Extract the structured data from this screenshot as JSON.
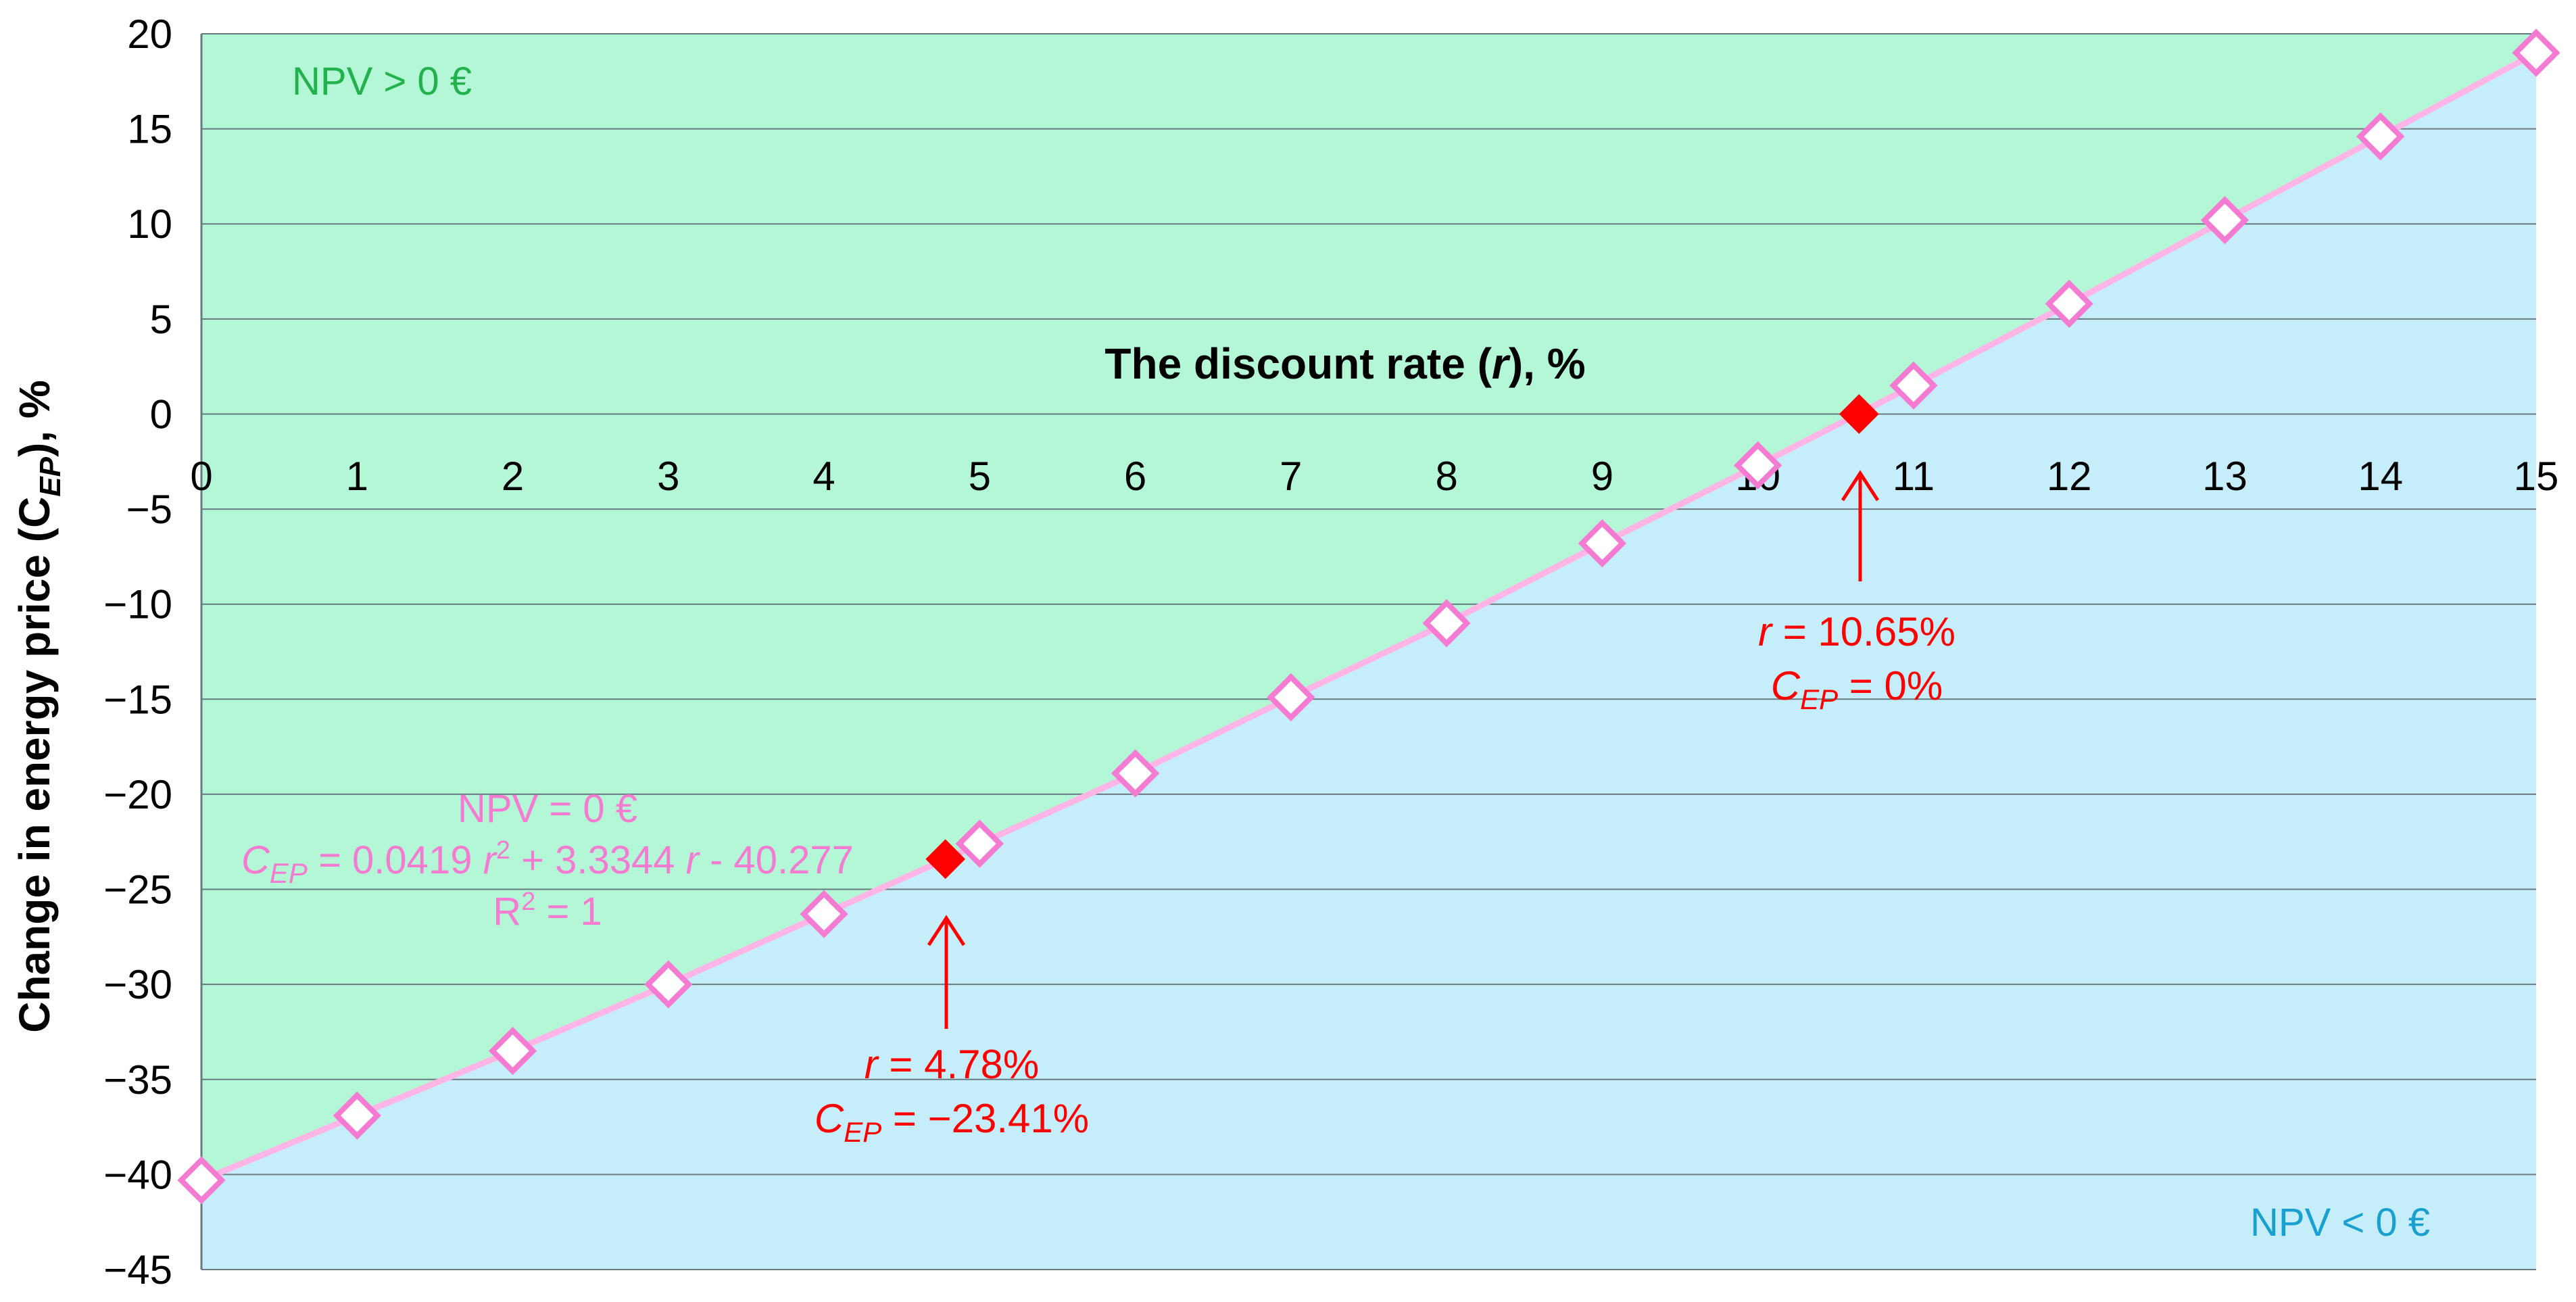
{
  "chart_data": {
    "type": "line",
    "xlabel": "The discount rate (r), %",
    "ylabel": "Change in energy price (CEP), %",
    "xlim": [
      0,
      15
    ],
    "ylim": [
      -45,
      20
    ],
    "x_ticks": [
      "0",
      "1",
      "2",
      "3",
      "4",
      "5",
      "6",
      "7",
      "8",
      "9",
      "10",
      "11",
      "12",
      "13",
      "14",
      "15"
    ],
    "y_ticks": [
      "20",
      "15",
      "10",
      "5",
      "0",
      "−5",
      "−10",
      "−15",
      "−20",
      "−25",
      "−30",
      "−35",
      "−40",
      "−45"
    ],
    "grid": "horizontal",
    "series": [
      {
        "marker": "diamond-open",
        "color": "#f47ad2",
        "line_color": "#ffb6e6",
        "x": [
          0,
          1,
          2,
          3,
          4,
          5,
          6,
          7,
          8,
          9,
          10,
          11,
          12,
          13,
          14,
          15
        ],
        "y": [
          -40.3,
          -36.9,
          -33.5,
          -30.0,
          -26.3,
          -22.6,
          -18.9,
          -14.9,
          -11.0,
          -6.8,
          -2.7,
          1.5,
          5.8,
          10.2,
          14.6,
          19.0
        ]
      }
    ],
    "highlight_points": [
      {
        "x": 4.78,
        "y": -23.41,
        "color": "#ff0000",
        "label_r": "4.78%",
        "label_c": "−23.41%"
      },
      {
        "x": 10.65,
        "y": 0,
        "color": "#ff0000",
        "label_r": "10.65%",
        "label_c": "0%"
      }
    ],
    "regions": {
      "upper_color": "#b3f7d6",
      "lower_color": "#c5eefa",
      "upper_label": "NPV > 0 €",
      "lower_label": "NPV < 0 €",
      "upper_label_color": "#22b14c",
      "lower_label_color": "#1aa0d0"
    },
    "equation": {
      "line1": "NPV = 0 €",
      "line2": "= 0.0419 r² + 3.3344 r - 40.277",
      "line3": "R² = 1"
    }
  }
}
